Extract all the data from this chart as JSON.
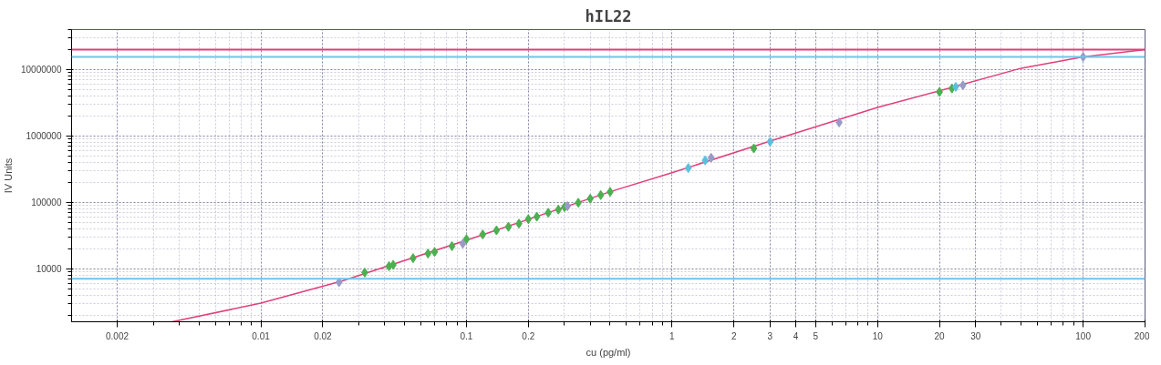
{
  "chart_data": {
    "type": "scatter",
    "title": "hIL22",
    "xlabel": "cu (pg/ml)",
    "ylabel": "IV Units",
    "log": "xy",
    "grid": true,
    "marker": "diamond",
    "xlim": [
      0.0012,
      200
    ],
    "ylim": [
      1600,
      40000000
    ],
    "xticks": [
      0.002,
      0.01,
      0.02,
      0.1,
      0.2,
      1,
      2,
      3,
      4,
      5,
      10,
      20,
      30,
      100,
      200
    ],
    "yticks": [
      10000,
      100000,
      1000000,
      10000000
    ],
    "ref_lines": [
      {
        "axis": "y",
        "value": 20000000,
        "color": "#e0407a"
      },
      {
        "axis": "y",
        "value": 15500000,
        "color": "#6ec6e6"
      },
      {
        "axis": "y",
        "value": 7100,
        "color": "#6ec6e6"
      }
    ],
    "series": [
      {
        "type": "line",
        "marker": "none",
        "color": "#e0407a",
        "line_style": "solid",
        "x": [
          0.0037,
          0.01,
          0.025,
          0.1,
          0.5,
          1,
          3,
          10,
          20,
          50,
          100,
          200
        ],
        "values": [
          1600,
          3050,
          6600,
          27000,
          145000,
          280000,
          840000,
          2700000,
          4800000,
          10500000,
          15500000,
          20000000
        ]
      },
      {
        "color": "#4caf50",
        "x": [
          0.032,
          0.042,
          0.044,
          0.055,
          0.065,
          0.07,
          0.085,
          0.1,
          0.12,
          0.14,
          0.16,
          0.18,
          0.2,
          0.22,
          0.25,
          0.28,
          0.3,
          0.35,
          0.4,
          0.45,
          0.5,
          2.5,
          20,
          23
        ],
        "values": [
          8800,
          11000,
          11500,
          14500,
          17000,
          18000,
          22000,
          28000,
          33000,
          38000,
          43000,
          48000,
          56000,
          61000,
          70000,
          78000,
          85000,
          99000,
          114000,
          129000,
          144000,
          650000,
          4600000,
          5200000
        ]
      },
      {
        "color": "#5bc0de",
        "x": [
          1.2,
          1.45,
          3.0,
          24
        ],
        "values": [
          330000,
          430000,
          820000,
          5500000
        ]
      },
      {
        "color": "#9a9ac8",
        "x": [
          0.024,
          0.096,
          0.31,
          1.55,
          6.5,
          26,
          100
        ],
        "values": [
          6300,
          24000,
          88000,
          470000,
          1600000,
          5800000,
          15500000
        ]
      }
    ]
  }
}
